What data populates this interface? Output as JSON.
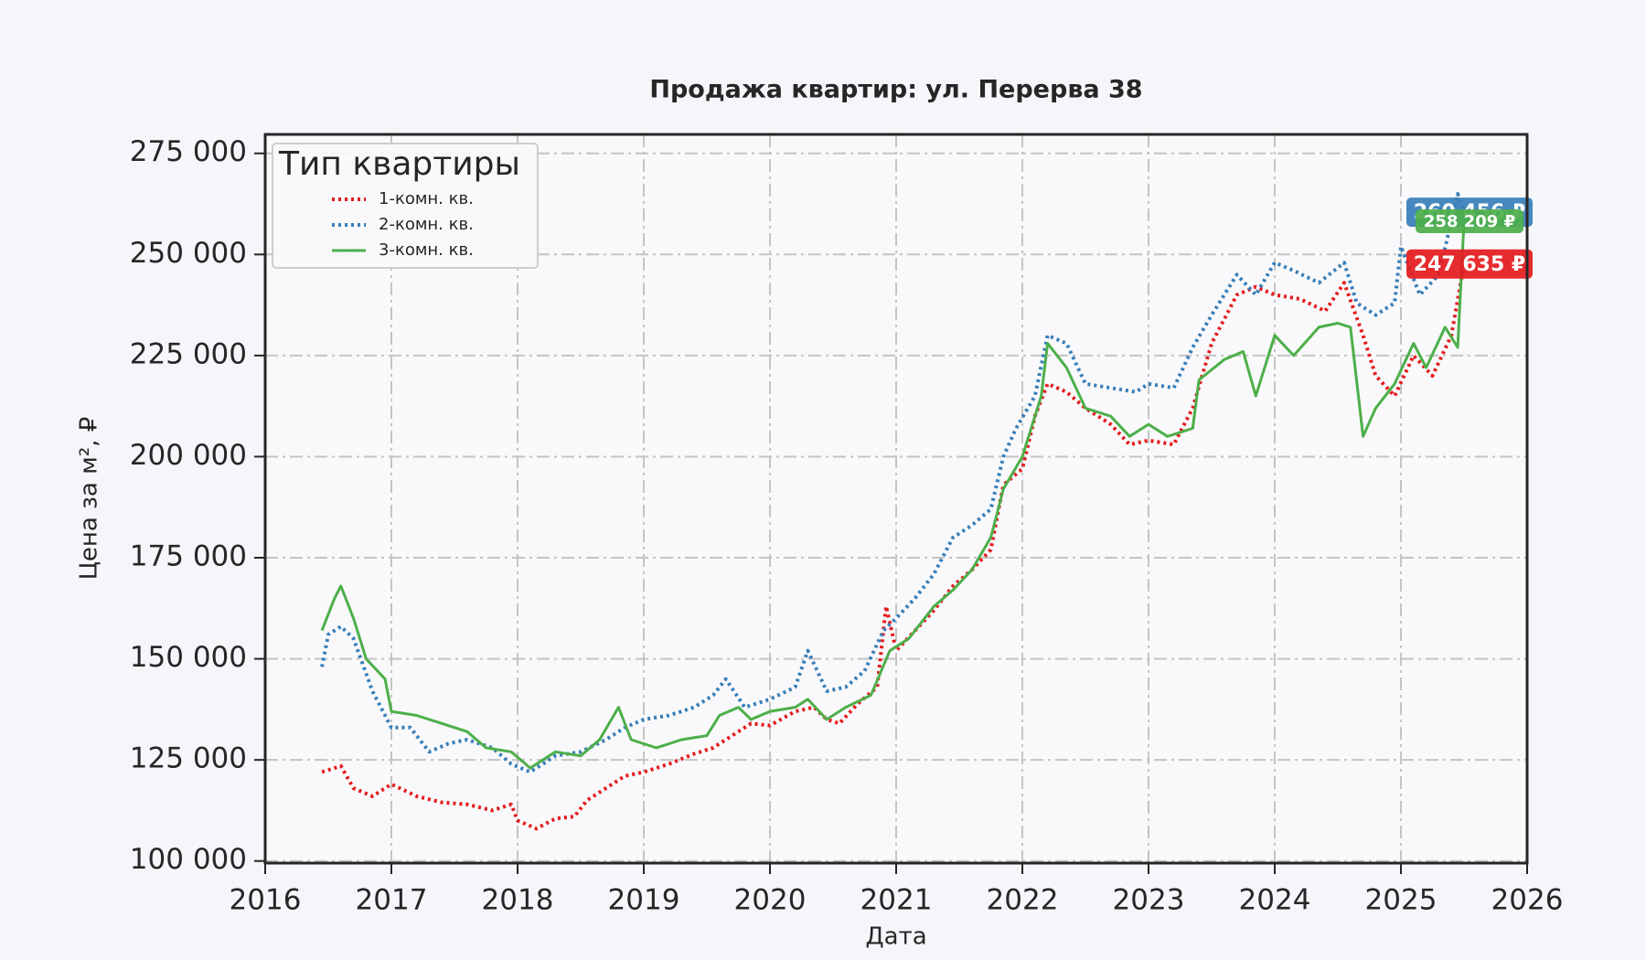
{
  "chart_data": {
    "type": "line",
    "title": "Продажа квартир: ул. Перерва 38",
    "x_label": "Дата",
    "y_label": "Цена за м², ₽",
    "legend_title": "Тип квартиры",
    "legend_position": "upper left",
    "grid": true,
    "xlim": [
      2016,
      2026
    ],
    "xticks": [
      2016,
      2017,
      2018,
      2019,
      2020,
      2021,
      2022,
      2023,
      2024,
      2025,
      2026
    ],
    "ylim": [
      99480,
      279690
    ],
    "yticks": [
      {
        "value": 100000,
        "label": "100 000"
      },
      {
        "value": 125000,
        "label": "125 000"
      },
      {
        "value": 150000,
        "label": "150 000"
      },
      {
        "value": 175000,
        "label": "175 000"
      },
      {
        "value": 200000,
        "label": "200 000"
      },
      {
        "value": 225000,
        "label": "225 000"
      },
      {
        "value": 250000,
        "label": "250 000"
      },
      {
        "value": 275000,
        "label": "275 000"
      }
    ],
    "series": [
      {
        "name": "1-комн. кв.",
        "color": "#e41a1c",
        "line_style": "dotted",
        "x": [
          2016.45,
          2016.6,
          2016.7,
          2016.85,
          2017.0,
          2017.2,
          2017.4,
          2017.6,
          2017.8,
          2017.95,
          2018.0,
          2018.15,
          2018.3,
          2018.45,
          2018.55,
          2018.7,
          2018.85,
          2019.0,
          2019.2,
          2019.4,
          2019.55,
          2019.7,
          2019.85,
          2020.0,
          2020.2,
          2020.35,
          2020.45,
          2020.55,
          2020.7,
          2020.85,
          2020.92,
          2021.0,
          2021.15,
          2021.3,
          2021.45,
          2021.6,
          2021.75,
          2021.85,
          2022.0,
          2022.1,
          2022.2,
          2022.35,
          2022.5,
          2022.7,
          2022.85,
          2023.0,
          2023.2,
          2023.35,
          2023.5,
          2023.7,
          2023.85,
          2024.0,
          2024.2,
          2024.4,
          2024.55,
          2024.7,
          2024.8,
          2024.95,
          2025.1,
          2025.25,
          2025.4,
          2025.5
        ],
        "values": [
          122000,
          123500,
          118000,
          116000,
          119000,
          116000,
          114500,
          114000,
          112500,
          114000,
          110000,
          108000,
          110500,
          111000,
          115000,
          118000,
          121000,
          122000,
          124000,
          126500,
          128000,
          131000,
          134000,
          133500,
          137000,
          138000,
          135000,
          134000,
          139000,
          143000,
          163000,
          152000,
          157000,
          162000,
          168000,
          172000,
          177000,
          193000,
          197000,
          210000,
          218000,
          216000,
          212000,
          208000,
          203000,
          204000,
          203000,
          212000,
          228000,
          240000,
          242000,
          240000,
          239000,
          236000,
          243000,
          230000,
          220000,
          215000,
          225000,
          220000,
          230000,
          247635
        ],
        "value_labels": [
          null,
          null,
          null,
          null,
          null,
          null,
          null,
          null,
          null,
          null,
          null,
          null,
          null,
          null,
          null,
          null,
          null,
          null,
          null,
          null,
          null,
          null,
          null,
          null,
          null,
          null,
          null,
          null,
          null,
          null,
          null,
          null,
          null,
          null,
          null,
          null,
          null,
          null,
          null,
          null,
          null,
          null,
          null,
          null,
          null,
          null,
          null,
          null,
          null,
          null,
          null,
          null,
          null,
          null,
          null,
          null,
          null,
          null,
          null,
          null,
          null,
          "247 635 ₽"
        ]
      },
      {
        "name": "2-комн. кв.",
        "color": "#377eb8",
        "line_style": "dotted",
        "x": [
          2016.45,
          2016.5,
          2016.6,
          2016.7,
          2016.85,
          2017.0,
          2017.15,
          2017.3,
          2017.45,
          2017.6,
          2017.8,
          2017.95,
          2018.1,
          2018.3,
          2018.5,
          2018.7,
          2018.85,
          2019.0,
          2019.2,
          2019.4,
          2019.55,
          2019.65,
          2019.8,
          2020.0,
          2020.2,
          2020.3,
          2020.45,
          2020.6,
          2020.75,
          2020.9,
          2021.0,
          2021.15,
          2021.3,
          2021.45,
          2021.6,
          2021.75,
          2021.85,
          2021.95,
          2022.1,
          2022.2,
          2022.35,
          2022.5,
          2022.7,
          2022.9,
          2023.0,
          2023.2,
          2023.35,
          2023.5,
          2023.7,
          2023.85,
          2024.0,
          2024.15,
          2024.35,
          2024.55,
          2024.65,
          2024.8,
          2024.95,
          2025.0,
          2025.15,
          2025.3,
          2025.45,
          2025.5
        ],
        "values": [
          148000,
          156000,
          158000,
          155000,
          142000,
          133000,
          133000,
          127000,
          129000,
          130000,
          128000,
          124000,
          122000,
          126000,
          127000,
          130000,
          133000,
          135000,
          136000,
          138000,
          141000,
          145000,
          138000,
          140000,
          143000,
          152000,
          142000,
          143000,
          147000,
          157000,
          160000,
          165000,
          171000,
          180000,
          183000,
          187000,
          200000,
          207000,
          215000,
          230000,
          228000,
          218000,
          217000,
          216000,
          218000,
          217000,
          227000,
          235000,
          245000,
          240000,
          248000,
          246000,
          243000,
          248000,
          238000,
          235000,
          238000,
          252000,
          240000,
          245000,
          265000,
          260456
        ],
        "value_labels": [
          null,
          null,
          null,
          null,
          null,
          null,
          null,
          null,
          null,
          null,
          null,
          null,
          null,
          null,
          null,
          null,
          null,
          null,
          null,
          null,
          null,
          null,
          null,
          null,
          null,
          null,
          null,
          null,
          null,
          null,
          null,
          null,
          null,
          null,
          null,
          null,
          null,
          null,
          null,
          null,
          null,
          null,
          null,
          null,
          null,
          null,
          null,
          null,
          null,
          null,
          null,
          null,
          null,
          null,
          null,
          null,
          null,
          null,
          null,
          null,
          null,
          "260 456 ₽"
        ]
      },
      {
        "name": "3-комн. кв.",
        "color": "#4daf4a",
        "line_style": "solid",
        "x": [
          2016.45,
          2016.55,
          2016.6,
          2016.7,
          2016.8,
          2016.95,
          2017.0,
          2017.2,
          2017.4,
          2017.6,
          2017.75,
          2017.95,
          2018.1,
          2018.3,
          2018.5,
          2018.65,
          2018.8,
          2018.9,
          2019.1,
          2019.3,
          2019.5,
          2019.6,
          2019.75,
          2019.85,
          2020.0,
          2020.2,
          2020.3,
          2020.45,
          2020.6,
          2020.8,
          2020.95,
          2021.1,
          2021.3,
          2021.45,
          2021.6,
          2021.75,
          2021.85,
          2022.0,
          2022.15,
          2022.2,
          2022.35,
          2022.5,
          2022.7,
          2022.85,
          2023.0,
          2023.15,
          2023.35,
          2023.4,
          2023.6,
          2023.75,
          2023.85,
          2024.0,
          2024.15,
          2024.35,
          2024.5,
          2024.6,
          2024.7,
          2024.8,
          2024.95,
          2025.1,
          2025.2,
          2025.35,
          2025.45,
          2025.5
        ],
        "values": [
          157000,
          165000,
          168000,
          160000,
          150000,
          145000,
          137000,
          136000,
          134000,
          132000,
          128000,
          127000,
          123000,
          127000,
          126000,
          130000,
          138000,
          130000,
          128000,
          130000,
          131000,
          136000,
          138000,
          135000,
          137000,
          138000,
          140000,
          135000,
          138000,
          141000,
          152000,
          155000,
          163000,
          167000,
          172000,
          180000,
          192000,
          200000,
          215000,
          228000,
          222000,
          212000,
          210000,
          205000,
          208000,
          205000,
          207000,
          219000,
          224000,
          226000,
          215000,
          230000,
          225000,
          232000,
          233000,
          232000,
          205000,
          212000,
          218000,
          228000,
          222000,
          232000,
          227000,
          258209
        ],
        "value_labels": [
          null,
          null,
          null,
          null,
          null,
          null,
          null,
          null,
          null,
          null,
          null,
          null,
          null,
          null,
          null,
          null,
          null,
          null,
          null,
          null,
          null,
          null,
          null,
          null,
          null,
          null,
          null,
          null,
          null,
          null,
          null,
          null,
          null,
          null,
          null,
          null,
          null,
          null,
          null,
          null,
          null,
          null,
          null,
          null,
          null,
          null,
          null,
          null,
          null,
          null,
          null,
          null,
          null,
          null,
          null,
          null,
          null,
          null,
          null,
          null,
          null,
          null,
          null,
          "258 209 ₽"
        ]
      }
    ]
  }
}
